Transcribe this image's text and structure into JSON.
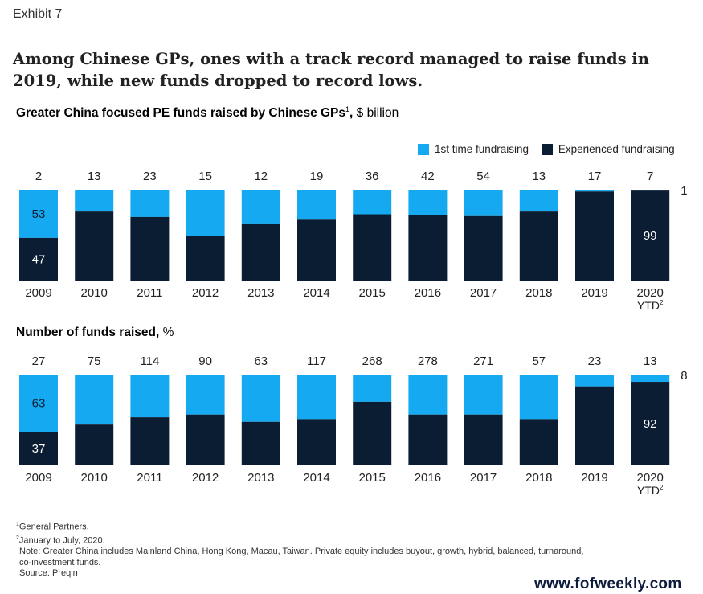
{
  "exhibit_label": "Exhibit 7",
  "headline": "Among Chinese GPs, ones with a track record managed to raise funds in 2019, while new funds dropped to record lows.",
  "colors": {
    "first_time": "#14a9f0",
    "experienced": "#0b1d33"
  },
  "legend": {
    "first_time": "1st time fundraising",
    "experienced": "Experienced fundraising"
  },
  "footnotes": {
    "f1": "General Partners.",
    "f2": "January to July, 2020.",
    "note1": "Note: Greater China includes Mainland China, Hong Kong, Macau, Taiwan. Private equity includes buyout, growth, hybrid, balanced, turnaround,",
    "note2": "co-investment funds.",
    "source": "Source: Preqin"
  },
  "watermark": "www.fofweekly.com",
  "chart_data": [
    {
      "type": "bar",
      "stacked": "100%",
      "title": "Greater China focused PE funds raised by Chinese GPs",
      "title_footnote": "1",
      "unit": ", $ billion",
      "categories": [
        "2009",
        "2010",
        "2011",
        "2012",
        "2013",
        "2014",
        "2015",
        "2016",
        "2017",
        "2018",
        "2019",
        "2020"
      ],
      "category_sublabel": {
        "2020": "YTD"
      },
      "category_sublabel_footnote": "2",
      "totals": [
        2,
        13,
        23,
        15,
        12,
        19,
        36,
        42,
        54,
        13,
        17,
        7
      ],
      "series": [
        {
          "name": "1st time fundraising",
          "values": [
            53,
            24,
            30,
            51,
            38,
            33,
            27,
            28,
            29,
            24,
            2,
            1
          ]
        },
        {
          "name": "Experienced fundraising",
          "values": [
            47,
            76,
            70,
            49,
            62,
            67,
            73,
            72,
            71,
            76,
            98,
            99
          ]
        }
      ],
      "data_labels": [
        {
          "category": "2009",
          "series": "1st time fundraising",
          "value": "53"
        },
        {
          "category": "2009",
          "series": "Experienced fundraising",
          "value": "47"
        },
        {
          "category": "2020",
          "series": "1st time fundraising",
          "value": "1"
        },
        {
          "category": "2020",
          "series": "Experienced fundraising",
          "value": "99"
        }
      ]
    },
    {
      "type": "bar",
      "stacked": "100%",
      "title": "Number of funds raised",
      "unit": ", %",
      "categories": [
        "2009",
        "2010",
        "2011",
        "2012",
        "2013",
        "2014",
        "2015",
        "2016",
        "2017",
        "2018",
        "2019",
        "2020"
      ],
      "category_sublabel": {
        "2020": "YTD"
      },
      "category_sublabel_footnote": "2",
      "totals": [
        27,
        75,
        114,
        90,
        63,
        117,
        268,
        278,
        271,
        57,
        23,
        13
      ],
      "series": [
        {
          "name": "1st time fundraising",
          "values": [
            63,
            55,
            47,
            44,
            52,
            49,
            30,
            44,
            44,
            49,
            13,
            8
          ]
        },
        {
          "name": "Experienced fundraising",
          "values": [
            37,
            45,
            53,
            56,
            48,
            51,
            70,
            56,
            56,
            51,
            87,
            92
          ]
        }
      ],
      "data_labels": [
        {
          "category": "2009",
          "series": "1st time fundraising",
          "value": "63"
        },
        {
          "category": "2009",
          "series": "Experienced fundraising",
          "value": "37"
        },
        {
          "category": "2020",
          "series": "1st time fundraising",
          "value": "8"
        },
        {
          "category": "2020",
          "series": "Experienced fundraising",
          "value": "92"
        }
      ]
    }
  ]
}
